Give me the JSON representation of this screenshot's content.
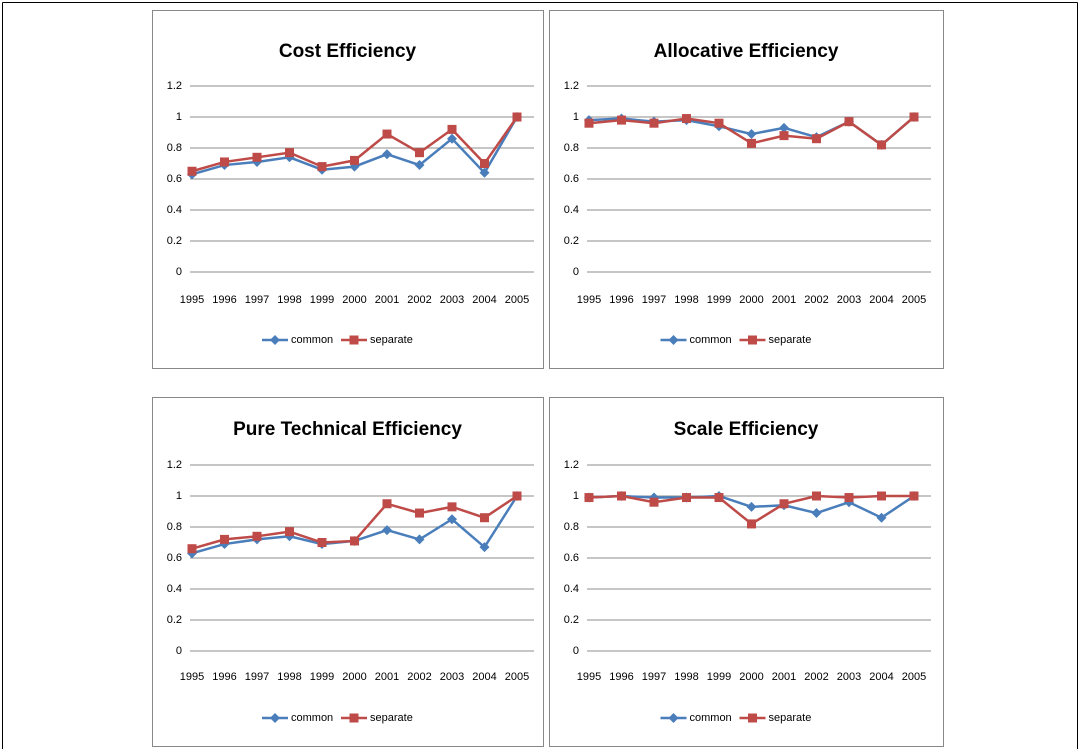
{
  "chart_data": [
    {
      "type": "line",
      "title": "Cost Efficiency",
      "categories": [
        "1995",
        "1996",
        "1997",
        "1998",
        "1999",
        "2000",
        "2001",
        "2002",
        "2003",
        "2004",
        "2005"
      ],
      "series": [
        {
          "name": "common",
          "color": "#4a7ebb",
          "marker": "diamond",
          "values": [
            0.63,
            0.69,
            0.71,
            0.74,
            0.66,
            0.68,
            0.76,
            0.69,
            0.86,
            0.64,
            1.0
          ]
        },
        {
          "name": "separate",
          "color": "#be4b48",
          "marker": "square",
          "values": [
            0.65,
            0.71,
            0.74,
            0.77,
            0.68,
            0.72,
            0.89,
            0.77,
            0.92,
            0.7,
            1.0
          ]
        }
      ],
      "ylim": [
        0,
        1.2
      ],
      "yticks": [
        0,
        0.2,
        0.4,
        0.6,
        0.8,
        1,
        1.2
      ],
      "grid": true,
      "legend": "bottom"
    },
    {
      "type": "line",
      "title": "Allocative Efficiency",
      "categories": [
        "1995",
        "1996",
        "1997",
        "1998",
        "1999",
        "2000",
        "2001",
        "2002",
        "2003",
        "2004",
        "2005"
      ],
      "series": [
        {
          "name": "common",
          "color": "#4a7ebb",
          "marker": "diamond",
          "values": [
            0.98,
            0.99,
            0.97,
            0.98,
            0.94,
            0.89,
            0.93,
            0.87,
            0.97,
            0.82,
            1.0
          ]
        },
        {
          "name": "separate",
          "color": "#be4b48",
          "marker": "square",
          "values": [
            0.96,
            0.98,
            0.96,
            0.99,
            0.96,
            0.83,
            0.88,
            0.86,
            0.97,
            0.82,
            1.0
          ]
        }
      ],
      "ylim": [
        0,
        1.2
      ],
      "yticks": [
        0,
        0.2,
        0.4,
        0.6,
        0.8,
        1,
        1.2
      ],
      "grid": true,
      "legend": "bottom"
    },
    {
      "type": "line",
      "title": "Pure Technical Efficiency",
      "categories": [
        "1995",
        "1996",
        "1997",
        "1998",
        "1999",
        "2000",
        "2001",
        "2002",
        "2003",
        "2004",
        "2005"
      ],
      "series": [
        {
          "name": "common",
          "color": "#4a7ebb",
          "marker": "diamond",
          "values": [
            0.63,
            0.69,
            0.72,
            0.74,
            0.69,
            0.71,
            0.78,
            0.72,
            0.85,
            0.67,
            1.0
          ]
        },
        {
          "name": "separate",
          "color": "#be4b48",
          "marker": "square",
          "values": [
            0.66,
            0.72,
            0.74,
            0.77,
            0.7,
            0.71,
            0.95,
            0.89,
            0.93,
            0.86,
            1.0
          ]
        }
      ],
      "ylim": [
        0,
        1.2
      ],
      "yticks": [
        0,
        0.2,
        0.4,
        0.6,
        0.8,
        1,
        1.2
      ],
      "grid": true,
      "legend": "bottom"
    },
    {
      "type": "line",
      "title": "Scale Efficiency",
      "categories": [
        "1995",
        "1996",
        "1997",
        "1998",
        "1999",
        "2000",
        "2001",
        "2002",
        "2003",
        "2004",
        "2005"
      ],
      "series": [
        {
          "name": "common",
          "color": "#4a7ebb",
          "marker": "diamond",
          "values": [
            0.99,
            1.0,
            0.99,
            0.99,
            1.0,
            0.93,
            0.94,
            0.89,
            0.96,
            0.86,
            1.0
          ]
        },
        {
          "name": "separate",
          "color": "#be4b48",
          "marker": "square",
          "values": [
            0.99,
            1.0,
            0.96,
            0.99,
            0.99,
            0.82,
            0.95,
            1.0,
            0.99,
            1.0,
            1.0
          ]
        }
      ],
      "ylim": [
        0,
        1.2
      ],
      "yticks": [
        0,
        0.2,
        0.4,
        0.6,
        0.8,
        1,
        1.2
      ],
      "grid": true,
      "legend": "bottom"
    }
  ]
}
